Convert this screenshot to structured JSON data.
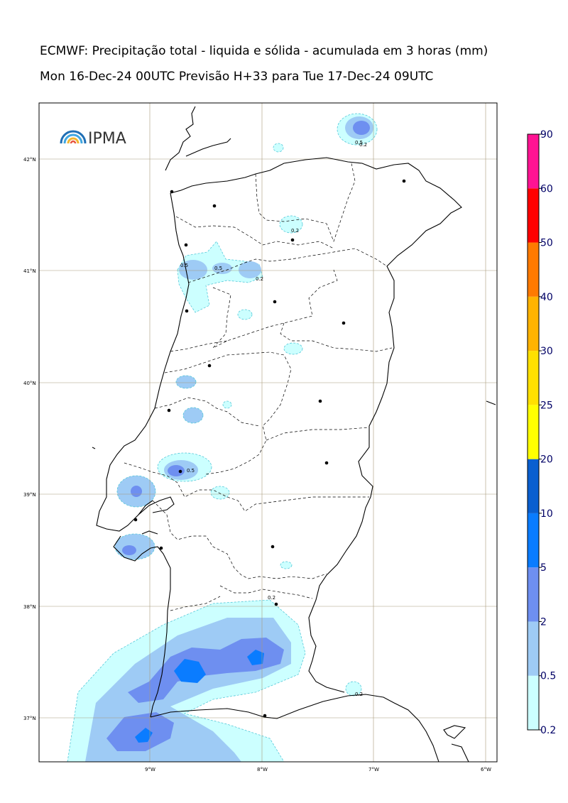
{
  "title_line1": "ECMWF: Precipitação total - liquida e sólida - acumulada em 3 horas (mm)",
  "title_line2": "Mon 16-Dec-24 00UTC Previsão H+33 para Tue 17-Dec-24 09UTC",
  "logo": {
    "text": "IPMA",
    "icon": "rainbow-arcs-icon",
    "colors": [
      "#1f6fb5",
      "#41a7e0",
      "#f2b632",
      "#e8553e"
    ]
  },
  "lat_labels": [
    "42°N",
    "41°N",
    "40°N",
    "39°N",
    "38°N",
    "37°N"
  ],
  "lon_labels": [
    "9°W",
    "8°W",
    "7°W",
    "6°W"
  ],
  "contour_labels": [
    "0.2",
    "0.5",
    "0.2",
    "0.5",
    "0.2",
    "0.5",
    "0.5",
    "0.2",
    "0.2"
  ],
  "colorbar": {
    "bands": [
      {
        "from": "0.2",
        "to": "0.5",
        "color": "#ccffff"
      },
      {
        "from": "0.5",
        "to": "2",
        "color": "#9ecbf5"
      },
      {
        "from": "2",
        "to": "5",
        "color": "#6e8ff0"
      },
      {
        "from": "5",
        "to": "10",
        "color": "#0a7cff"
      },
      {
        "from": "10",
        "to": "20",
        "color": "#0a5fd0"
      },
      {
        "from": "20",
        "to": "25",
        "color": "#ffff00"
      },
      {
        "from": "25",
        "to": "30",
        "color": "#ffe000"
      },
      {
        "from": "30",
        "to": "40",
        "color": "#ffb300"
      },
      {
        "from": "40",
        "to": "50",
        "color": "#ff7a00"
      },
      {
        "from": "50",
        "to": "60",
        "color": "#ff0000"
      },
      {
        "from": "60",
        "to": "90",
        "color": "#ff1493"
      }
    ],
    "labels": [
      "0.2",
      "0.5",
      "2",
      "5",
      "10",
      "20",
      "25",
      "30",
      "40",
      "50",
      "60",
      "90"
    ]
  },
  "colors": {
    "grid": "#a89a7a",
    "coast": "#000000",
    "precip_light": "#ccffff",
    "precip_mid": "#9ecbf5",
    "precip_strong": "#6e8ff0",
    "precip_heavy": "#0a7cff"
  }
}
